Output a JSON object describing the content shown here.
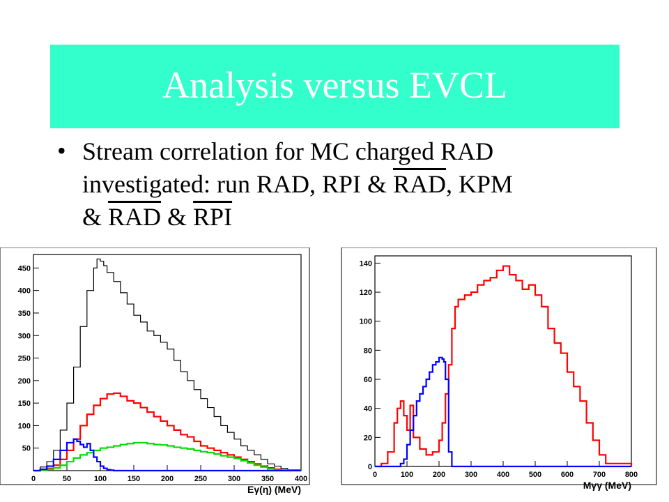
{
  "slide": {
    "title": "Analysis versus EVCL",
    "bullet": {
      "line1": "Stream correlation for MC charged RAD",
      "line2_pre": "investigated: run RAD, RPI & ",
      "line2_over": "RAD",
      "line2_post": ", KPM",
      "line3_pre": "& ",
      "line3_over1": "RAD",
      "line3_mid": " & ",
      "line3_over2": "RPI"
    }
  },
  "chart_data": [
    {
      "type": "line",
      "title": "",
      "xlabel": "Eγ(η) (MeV)",
      "ylabel": "",
      "xlim": [
        0,
        400
      ],
      "ylim": [
        0,
        480
      ],
      "xticks": [
        0,
        50,
        100,
        150,
        200,
        250,
        300,
        350,
        400
      ],
      "yticks": [
        50,
        100,
        150,
        200,
        250,
        300,
        350,
        400,
        450
      ],
      "grid": false,
      "series": [
        {
          "color": "#000000",
          "x": [
            0,
            10,
            20,
            30,
            40,
            50,
            60,
            70,
            80,
            90,
            95,
            100,
            105,
            110,
            120,
            130,
            140,
            150,
            160,
            170,
            180,
            190,
            200,
            210,
            220,
            230,
            240,
            250,
            260,
            270,
            280,
            290,
            300,
            310,
            320,
            330,
            340,
            350,
            360,
            370,
            380,
            400
          ],
          "y": [
            0,
            8,
            20,
            45,
            90,
            150,
            230,
            320,
            400,
            450,
            470,
            465,
            455,
            440,
            420,
            395,
            370,
            345,
            330,
            310,
            300,
            285,
            270,
            245,
            220,
            200,
            180,
            160,
            140,
            120,
            100,
            85,
            70,
            55,
            45,
            35,
            25,
            15,
            10,
            5,
            2,
            0
          ]
        },
        {
          "color": "#ff0000",
          "x": [
            0,
            10,
            20,
            30,
            40,
            50,
            60,
            70,
            80,
            90,
            100,
            110,
            120,
            130,
            140,
            150,
            160,
            170,
            180,
            190,
            200,
            210,
            220,
            230,
            240,
            250,
            260,
            270,
            280,
            290,
            300,
            310,
            320,
            330,
            340,
            350,
            360,
            370,
            400
          ],
          "y": [
            0,
            2,
            5,
            12,
            25,
            45,
            70,
            100,
            125,
            145,
            160,
            170,
            172,
            165,
            155,
            150,
            140,
            130,
            120,
            110,
            100,
            90,
            80,
            75,
            65,
            55,
            50,
            45,
            40,
            35,
            30,
            25,
            20,
            15,
            10,
            6,
            3,
            1,
            0
          ]
        },
        {
          "color": "#00dd00",
          "x": [
            0,
            10,
            20,
            30,
            40,
            50,
            60,
            70,
            80,
            90,
            100,
            110,
            120,
            130,
            140,
            150,
            160,
            170,
            180,
            190,
            200,
            210,
            220,
            230,
            240,
            250,
            260,
            270,
            280,
            290,
            300,
            310,
            320,
            330,
            340,
            350,
            360,
            400
          ],
          "y": [
            0,
            1,
            3,
            6,
            12,
            20,
            28,
            35,
            40,
            45,
            50,
            52,
            55,
            58,
            60,
            62,
            62,
            60,
            58,
            57,
            55,
            52,
            50,
            48,
            45,
            42,
            40,
            37,
            33,
            30,
            27,
            22,
            17,
            12,
            8,
            4,
            1,
            0
          ]
        },
        {
          "color": "#0000ff",
          "x": [
            0,
            10,
            20,
            30,
            40,
            50,
            60,
            65,
            70,
            75,
            80,
            85,
            90,
            95,
            100,
            105,
            110,
            115,
            120,
            400
          ],
          "y": [
            0,
            3,
            10,
            25,
            45,
            62,
            70,
            65,
            58,
            52,
            60,
            45,
            30,
            20,
            10,
            5,
            2,
            1,
            0,
            0
          ]
        }
      ]
    },
    {
      "type": "line",
      "title": "",
      "xlabel": "Mγγ (MeV)",
      "ylabel": "",
      "xlim": [
        0,
        800
      ],
      "ylim": [
        0,
        145
      ],
      "xticks": [
        0,
        100,
        200,
        300,
        400,
        500,
        600,
        700,
        800
      ],
      "yticks": [
        0,
        20,
        40,
        60,
        80,
        100,
        120,
        140
      ],
      "grid": false,
      "series": [
        {
          "color": "#ff0000",
          "x": [
            0,
            20,
            40,
            60,
            70,
            80,
            90,
            100,
            110,
            120,
            140,
            160,
            180,
            200,
            210,
            220,
            230,
            240,
            250,
            260,
            280,
            300,
            320,
            340,
            360,
            380,
            400,
            420,
            440,
            460,
            480,
            500,
            520,
            540,
            560,
            580,
            600,
            620,
            640,
            660,
            680,
            700,
            720,
            800
          ],
          "y": [
            0,
            2,
            10,
            30,
            40,
            45,
            35,
            25,
            42,
            20,
            12,
            8,
            10,
            18,
            30,
            50,
            70,
            95,
            110,
            115,
            118,
            120,
            125,
            128,
            130,
            135,
            138,
            132,
            128,
            122,
            125,
            118,
            110,
            95,
            85,
            78,
            65,
            55,
            45,
            30,
            18,
            8,
            2,
            0
          ]
        },
        {
          "color": "#0000ff",
          "x": [
            0,
            50,
            80,
            90,
            100,
            110,
            120,
            130,
            140,
            150,
            160,
            170,
            180,
            190,
            200,
            210,
            215,
            220,
            230,
            240,
            800
          ],
          "y": [
            0,
            0,
            2,
            5,
            15,
            25,
            35,
            45,
            50,
            55,
            60,
            65,
            70,
            72,
            75,
            74,
            72,
            60,
            10,
            0,
            0
          ]
        }
      ]
    }
  ]
}
